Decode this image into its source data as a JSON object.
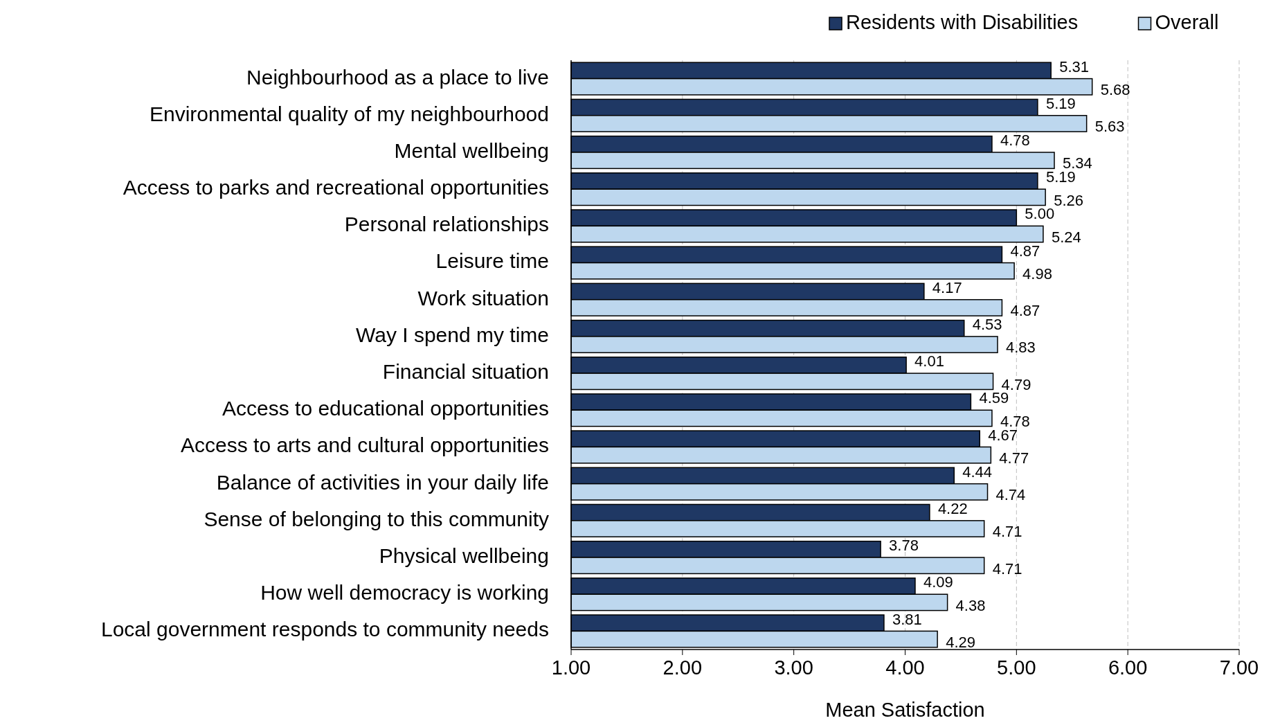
{
  "chart_data": {
    "type": "bar",
    "orientation": "horizontal",
    "xlabel": "Mean Satisfaction",
    "categories": [
      "Neighbourhood as a place to live",
      "Environmental quality of my neighbourhood",
      "Mental wellbeing",
      "Access to parks and recreational opportunities ",
      "Personal relationships",
      "Leisure time",
      "Work situation",
      "Way I spend my time",
      "Financial situation",
      "Access to educational opportunities ",
      "Access to arts and cultural opportunities",
      "Balance of activities in your daily life",
      "Sense of belonging to this community",
      "Physical wellbeing",
      "How well democracy is working ",
      "Local government responds to community needs"
    ],
    "series": [
      {
        "name": "Residents with Disabilities",
        "color": "#1f3864",
        "values": [
          5.31,
          5.19,
          4.78,
          5.19,
          5.0,
          4.87,
          4.17,
          4.53,
          4.01,
          4.59,
          4.67,
          4.44,
          4.22,
          3.78,
          4.09,
          3.81
        ],
        "value_labels": [
          "5.31",
          "5.19",
          "4.78",
          "5.19",
          "5.00",
          "4.87",
          "4.17",
          "4.53",
          "4.01",
          "4.59",
          "4.67",
          "4.44",
          "4.22",
          "3.78",
          "4.09",
          "3.81"
        ]
      },
      {
        "name": "Overall",
        "color": "#bdd7ee",
        "values": [
          5.68,
          5.63,
          5.34,
          5.26,
          5.24,
          4.98,
          4.87,
          4.83,
          4.79,
          4.78,
          4.77,
          4.74,
          4.71,
          4.71,
          4.38,
          4.29
        ],
        "value_labels": [
          "5.68",
          "5.63",
          "5.34",
          "5.26",
          "5.24",
          "4.98",
          "4.87",
          "4.83",
          "4.79",
          "4.78",
          "4.77",
          "4.74",
          "4.71",
          "4.71",
          "4.38",
          "4.29"
        ]
      }
    ],
    "xlim": [
      1,
      7
    ],
    "xticks": [
      {
        "value": 1,
        "label": "1.00"
      },
      {
        "value": 2,
        "label": "2.00"
      },
      {
        "value": 3,
        "label": "3.00"
      },
      {
        "value": 4,
        "label": "4.00"
      },
      {
        "value": 5,
        "label": "5.00"
      },
      {
        "value": 6,
        "label": "6.00"
      },
      {
        "value": 7,
        "label": "7.00"
      }
    ],
    "grid": "x",
    "legend": "top right"
  }
}
